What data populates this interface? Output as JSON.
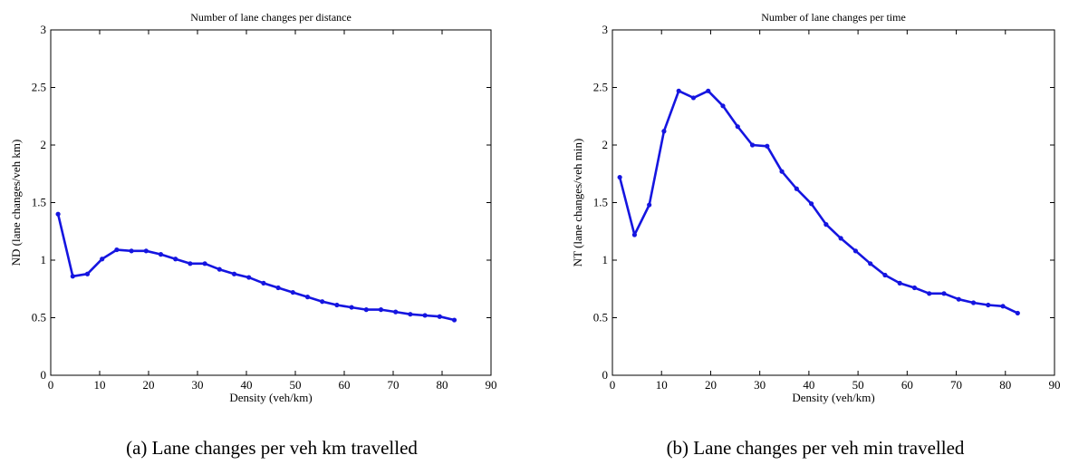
{
  "chart_data": [
    {
      "type": "line",
      "title": "Number of lane changes per distance",
      "xlabel": "Density (veh/km)",
      "ylabel": "ND (lane changes/veh km)",
      "xlim": [
        0,
        90
      ],
      "ylim": [
        0,
        3
      ],
      "xticks": [
        "0",
        "10",
        "20",
        "30",
        "40",
        "50",
        "60",
        "70",
        "80",
        "90"
      ],
      "yticks": [
        "0",
        "0.5",
        "1",
        "1.5",
        "2",
        "2.5",
        "3"
      ],
      "grid": false,
      "color": "#1515e0",
      "caption": "(a)  Lane changes per veh km travelled",
      "series": [
        {
          "x": [
            1.5,
            4.5,
            7.5,
            10.5,
            13.5,
            16.5,
            19.5,
            22.5,
            25.5,
            28.5,
            31.5,
            34.5,
            37.5,
            40.5,
            43.5,
            46.5,
            49.5,
            52.5,
            55.5,
            58.5,
            61.5,
            64.5,
            67.5,
            70.5,
            73.5,
            76.5,
            79.5,
            82.5
          ],
          "y": [
            1.4,
            0.86,
            0.88,
            1.01,
            1.09,
            1.08,
            1.08,
            1.05,
            1.01,
            0.97,
            0.97,
            0.92,
            0.88,
            0.85,
            0.8,
            0.76,
            0.72,
            0.68,
            0.64,
            0.61,
            0.59,
            0.57,
            0.57,
            0.55,
            0.53,
            0.52,
            0.51,
            0.48
          ]
        }
      ]
    },
    {
      "type": "line",
      "title": "Number of lane changes per time",
      "xlabel": "Density (veh/km)",
      "ylabel": "NT (lane changes/veh min)",
      "xlim": [
        0,
        90
      ],
      "ylim": [
        0,
        3
      ],
      "xticks": [
        "0",
        "10",
        "20",
        "30",
        "40",
        "50",
        "60",
        "70",
        "80",
        "90"
      ],
      "yticks": [
        "0",
        "0.5",
        "1",
        "1.5",
        "2",
        "2.5",
        "3"
      ],
      "grid": false,
      "color": "#1515e0",
      "caption": "(b)  Lane changes per veh min travelled",
      "series": [
        {
          "x": [
            1.5,
            4.5,
            7.5,
            10.5,
            13.5,
            16.5,
            19.5,
            22.5,
            25.5,
            28.5,
            31.5,
            34.5,
            37.5,
            40.5,
            43.5,
            46.5,
            49.5,
            52.5,
            55.5,
            58.5,
            61.5,
            64.5,
            67.5,
            70.5,
            73.5,
            76.5,
            79.5,
            82.5
          ],
          "y": [
            1.72,
            1.22,
            1.48,
            2.12,
            2.47,
            2.41,
            2.47,
            2.34,
            2.16,
            2.0,
            1.99,
            1.77,
            1.62,
            1.49,
            1.31,
            1.19,
            1.08,
            0.97,
            0.87,
            0.8,
            0.76,
            0.71,
            0.71,
            0.66,
            0.63,
            0.61,
            0.6,
            0.54
          ]
        }
      ]
    }
  ]
}
